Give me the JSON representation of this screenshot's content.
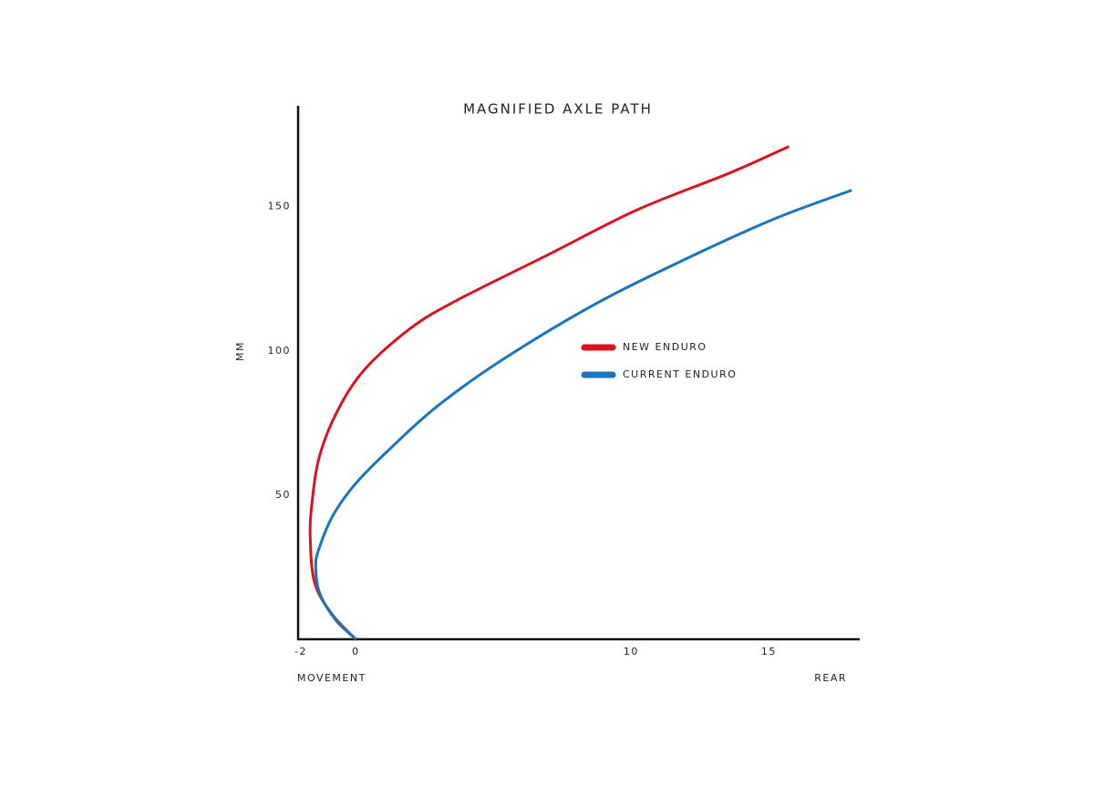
{
  "chart_data": {
    "type": "line",
    "title": "MAGNIFIED AXLE PATH",
    "ylabel": "MM",
    "xlabel_left": "MOVEMENT",
    "xlabel_right": "REAR",
    "xlim": [
      -2.1,
      18.3
    ],
    "ylim": [
      0,
      185
    ],
    "xticks": [
      -2,
      0,
      10,
      15
    ],
    "yticks": [
      50,
      100,
      150
    ],
    "grid": false,
    "legend": "center",
    "series": [
      {
        "name": "NEW ENDURO",
        "color": "#d7141f",
        "x": [
          0,
          -0.83,
          -1.49,
          -1.66,
          -1.59,
          -1.32,
          -0.66,
          0.33,
          1.99,
          3.64,
          6.95,
          10.26,
          13.58,
          15.73
        ],
        "values": [
          0,
          8.2,
          19.3,
          35.1,
          47.8,
          63.6,
          79.4,
          93.7,
          107.9,
          117.4,
          133.2,
          149.1,
          161.7,
          170.9
        ]
      },
      {
        "name": "CURRENT ENDURO",
        "color": "#1a75bc",
        "x": [
          0,
          -0.73,
          -1.32,
          -1.46,
          -1.32,
          -0.83,
          0,
          1.32,
          2.98,
          5.3,
          8.61,
          11.92,
          15.23,
          18.01
        ],
        "values": [
          0,
          6.6,
          16.1,
          25.6,
          32.0,
          43.0,
          54.1,
          66.8,
          81.0,
          96.8,
          115.8,
          131.6,
          145.9,
          155.7
        ]
      }
    ]
  }
}
